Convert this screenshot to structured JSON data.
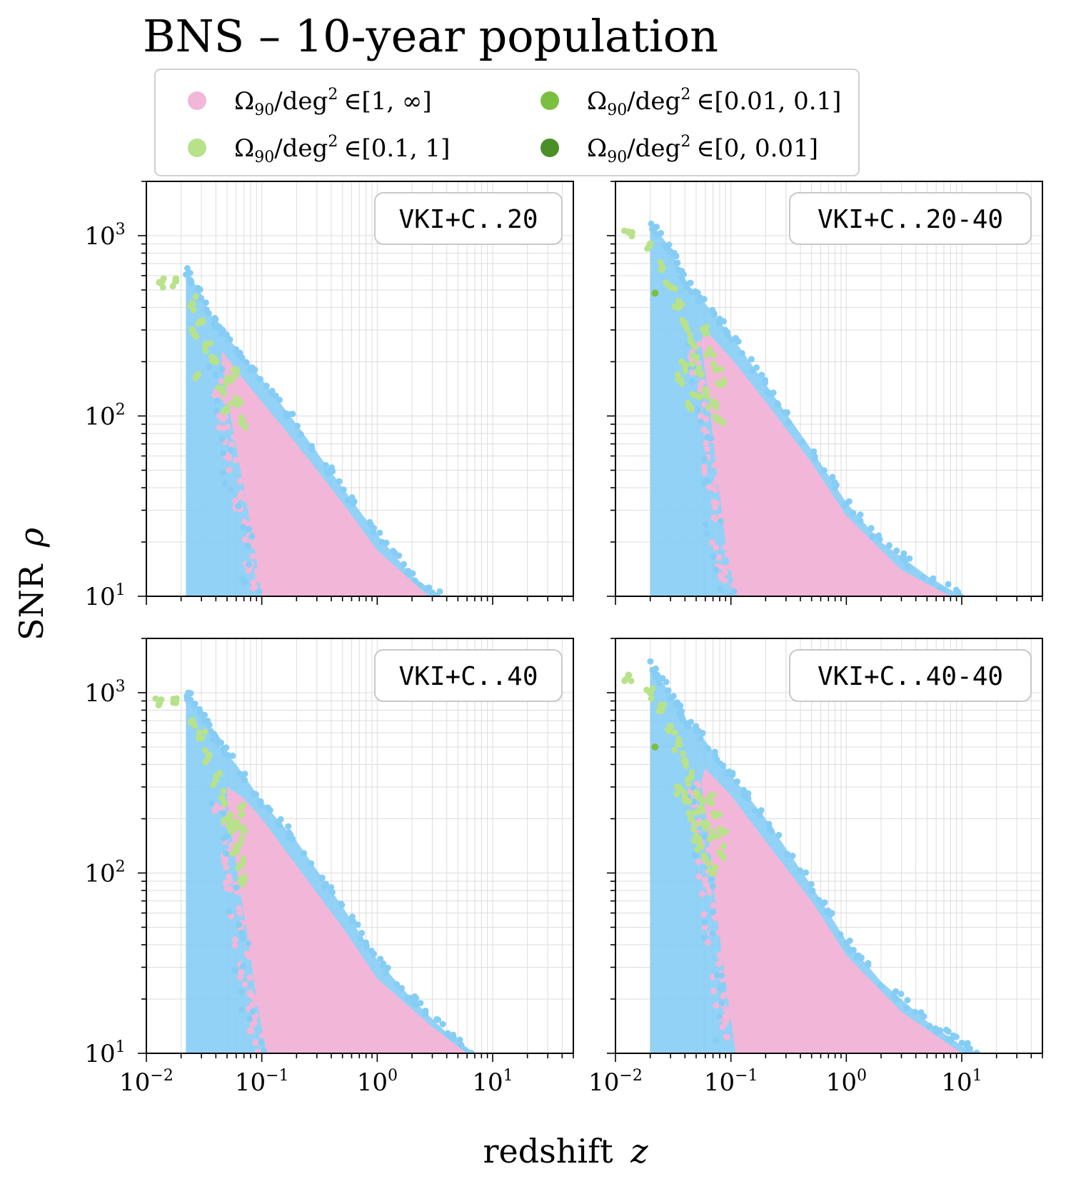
{
  "chart_data": {
    "type": "scatter",
    "title": "BNS – 10-year population",
    "xlabel": "redshift",
    "xlabel_var": "z",
    "ylabel": "SNR",
    "ylabel_var": "ρ",
    "xscale": "log",
    "yscale": "log",
    "xlim": [
      0.01,
      50
    ],
    "ylim": [
      10,
      2000
    ],
    "grid": true,
    "legend_placement": "top-center",
    "x_tick_labels": [
      {
        "value": 0.01,
        "base": "10",
        "exp": "−2"
      },
      {
        "value": 0.1,
        "base": "10",
        "exp": "−1"
      },
      {
        "value": 1,
        "base": "10",
        "exp": "0"
      },
      {
        "value": 10,
        "base": "10",
        "exp": "1"
      }
    ],
    "y_tick_labels": [
      {
        "value": 10,
        "base": "10",
        "exp": "1"
      },
      {
        "value": 100,
        "base": "10",
        "exp": "2"
      },
      {
        "value": 1000,
        "base": "10",
        "exp": "3"
      }
    ],
    "series": [
      {
        "key": "s1",
        "name": "Ω90/deg² ∈[1, ∞]",
        "range": "∈[1, ∞]",
        "color": "#f2b6d9"
      },
      {
        "key": "s2",
        "name": "Ω90/deg² ∈[0.1, 1]",
        "range": "∈[0.1, 1]",
        "color": "#b8e28a"
      },
      {
        "key": "s3",
        "name": "Ω90/deg² ∈[0.01, 0.1]",
        "range": "∈[0.01, 0.1]",
        "color": "#7bbf3f"
      },
      {
        "key": "s4",
        "name": "Ω90/deg² ∈[0, 0.01]",
        "range": "∈[0, 0.01]",
        "color": "#4a8f27"
      }
    ],
    "envelope_color": "#86cdf5",
    "panels": [
      {
        "label": "VKI+C..20",
        "envelope": [
          [
            0.022,
            650
          ],
          [
            0.03,
            470
          ],
          [
            0.04,
            320
          ],
          [
            0.06,
            240
          ],
          [
            0.1,
            160
          ],
          [
            0.2,
            90
          ],
          [
            0.5,
            40
          ],
          [
            1,
            22
          ],
          [
            2,
            13
          ],
          [
            3.5,
            10
          ]
        ],
        "pink_edge": [
          [
            0.045,
            230
          ],
          [
            0.06,
            180
          ],
          [
            0.1,
            120
          ],
          [
            0.2,
            70
          ],
          [
            0.5,
            33
          ],
          [
            1,
            18
          ],
          [
            2.8,
            10
          ]
        ],
        "pink_lower": [
          [
            0.045,
            200
          ],
          [
            0.055,
            90
          ],
          [
            0.07,
            40
          ],
          [
            0.085,
            20
          ],
          [
            0.1,
            10
          ]
        ],
        "green_points": [
          [
            0.013,
            550
          ],
          [
            0.018,
            560
          ],
          [
            0.025,
            420
          ],
          [
            0.03,
            330
          ],
          [
            0.033,
            250
          ],
          [
            0.04,
            200
          ],
          [
            0.045,
            140
          ],
          [
            0.05,
            110
          ],
          [
            0.06,
            180
          ],
          [
            0.065,
            120
          ],
          [
            0.07,
            90
          ],
          [
            0.055,
            160
          ],
          [
            0.025,
            300
          ],
          [
            0.028,
            170
          ]
        ],
        "dark_points": []
      },
      {
        "label": "VKI+C..20-40",
        "envelope": [
          [
            0.02,
            1200
          ],
          [
            0.03,
            850
          ],
          [
            0.04,
            560
          ],
          [
            0.06,
            420
          ],
          [
            0.1,
            280
          ],
          [
            0.2,
            150
          ],
          [
            0.5,
            65
          ],
          [
            1,
            33
          ],
          [
            2,
            20
          ],
          [
            5,
            13
          ],
          [
            10,
            10
          ]
        ],
        "pink_edge": [
          [
            0.06,
            300
          ],
          [
            0.1,
            210
          ],
          [
            0.2,
            120
          ],
          [
            0.5,
            55
          ],
          [
            1,
            28
          ],
          [
            3,
            14
          ],
          [
            8,
            10
          ]
        ],
        "pink_lower": [
          [
            0.055,
            260
          ],
          [
            0.065,
            120
          ],
          [
            0.075,
            50
          ],
          [
            0.09,
            20
          ],
          [
            0.11,
            10
          ]
        ],
        "green_points": [
          [
            0.013,
            1050
          ],
          [
            0.02,
            900
          ],
          [
            0.025,
            650
          ],
          [
            0.03,
            520
          ],
          [
            0.035,
            400
          ],
          [
            0.04,
            320
          ],
          [
            0.045,
            260
          ],
          [
            0.05,
            210
          ],
          [
            0.055,
            170
          ],
          [
            0.06,
            140
          ],
          [
            0.07,
            120
          ],
          [
            0.08,
            95
          ],
          [
            0.05,
            130
          ],
          [
            0.045,
            110
          ],
          [
            0.065,
            230
          ],
          [
            0.075,
            180
          ],
          [
            0.085,
            150
          ],
          [
            0.04,
            190
          ],
          [
            0.035,
            160
          ],
          [
            0.06,
            290
          ]
        ],
        "dark_points": [
          [
            0.022,
            480
          ]
        ]
      },
      {
        "label": "VKI+C..40",
        "envelope": [
          [
            0.022,
            1000
          ],
          [
            0.03,
            780
          ],
          [
            0.04,
            540
          ],
          [
            0.06,
            400
          ],
          [
            0.1,
            250
          ],
          [
            0.2,
            150
          ],
          [
            0.5,
            65
          ],
          [
            1,
            33
          ],
          [
            2,
            20
          ],
          [
            4,
            13
          ],
          [
            7,
            10
          ]
        ],
        "pink_edge": [
          [
            0.05,
            300
          ],
          [
            0.07,
            260
          ],
          [
            0.1,
            200
          ],
          [
            0.2,
            110
          ],
          [
            0.5,
            50
          ],
          [
            1,
            26
          ],
          [
            3,
            14
          ],
          [
            6,
            10
          ]
        ],
        "pink_lower": [
          [
            0.05,
            250
          ],
          [
            0.06,
            110
          ],
          [
            0.075,
            45
          ],
          [
            0.09,
            20
          ],
          [
            0.11,
            10
          ]
        ],
        "green_points": [
          [
            0.013,
            880
          ],
          [
            0.018,
            880
          ],
          [
            0.025,
            700
          ],
          [
            0.03,
            560
          ],
          [
            0.035,
            450
          ],
          [
            0.04,
            330
          ],
          [
            0.045,
            260
          ],
          [
            0.05,
            200
          ],
          [
            0.055,
            170
          ],
          [
            0.06,
            140
          ],
          [
            0.065,
            110
          ],
          [
            0.07,
            95
          ],
          [
            0.06,
            190
          ],
          [
            0.065,
            230
          ],
          [
            0.07,
            170
          ]
        ],
        "dark_points": []
      },
      {
        "label": "VKI+C..40-40",
        "envelope": [
          [
            0.02,
            1400
          ],
          [
            0.03,
            1000
          ],
          [
            0.04,
            720
          ],
          [
            0.06,
            540
          ],
          [
            0.1,
            350
          ],
          [
            0.2,
            200
          ],
          [
            0.5,
            85
          ],
          [
            1,
            42
          ],
          [
            2,
            25
          ],
          [
            5,
            15
          ],
          [
            10,
            11
          ],
          [
            14,
            10
          ]
        ],
        "pink_edge": [
          [
            0.06,
            380
          ],
          [
            0.1,
            270
          ],
          [
            0.2,
            150
          ],
          [
            0.5,
            70
          ],
          [
            1,
            35
          ],
          [
            3,
            17
          ],
          [
            10,
            10
          ]
        ],
        "pink_lower": [
          [
            0.055,
            320
          ],
          [
            0.065,
            150
          ],
          [
            0.075,
            60
          ],
          [
            0.09,
            25
          ],
          [
            0.11,
            10
          ]
        ],
        "green_points": [
          [
            0.013,
            1250
          ],
          [
            0.02,
            1000
          ],
          [
            0.025,
            800
          ],
          [
            0.03,
            650
          ],
          [
            0.035,
            520
          ],
          [
            0.04,
            420
          ],
          [
            0.045,
            340
          ],
          [
            0.05,
            280
          ],
          [
            0.055,
            230
          ],
          [
            0.06,
            190
          ],
          [
            0.07,
            160
          ],
          [
            0.08,
            130
          ],
          [
            0.045,
            200
          ],
          [
            0.05,
            160
          ],
          [
            0.055,
            140
          ],
          [
            0.065,
            250
          ],
          [
            0.075,
            210
          ],
          [
            0.085,
            170
          ],
          [
            0.04,
            260
          ],
          [
            0.035,
            300
          ],
          [
            0.06,
            120
          ],
          [
            0.07,
            100
          ]
        ],
        "dark_points": [
          [
            0.022,
            500
          ]
        ]
      }
    ]
  }
}
